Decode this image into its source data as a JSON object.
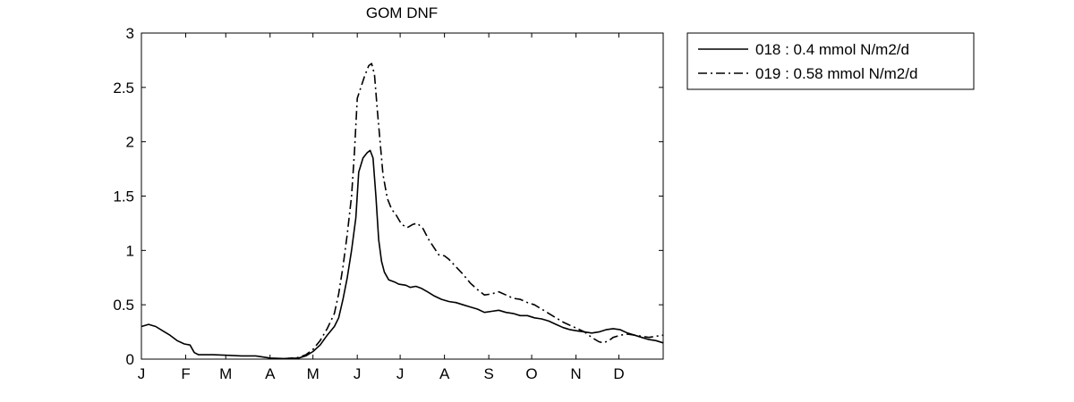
{
  "chart_data": {
    "type": "line",
    "title": "GOM DNF",
    "xlabel": "",
    "ylabel": "",
    "x_ticks": [
      "J",
      "F",
      "M",
      "A",
      "M",
      "J",
      "J",
      "A",
      "S",
      "O",
      "N",
      "D"
    ],
    "xlim": [
      0,
      365
    ],
    "ylim": [
      0,
      3
    ],
    "y_ticks": [
      "0",
      "0.5",
      "1",
      "1.5",
      "2",
      "2.5",
      "3"
    ],
    "legend_position": "outside-top-right",
    "grid": false,
    "series": [
      {
        "name": "018 : 0.4 mmol N/m2/d",
        "style": "solid",
        "color": "#000000",
        "points": [
          [
            0,
            0.3
          ],
          [
            5,
            0.32
          ],
          [
            10,
            0.3
          ],
          [
            15,
            0.26
          ],
          [
            20,
            0.22
          ],
          [
            25,
            0.17
          ],
          [
            30,
            0.14
          ],
          [
            34,
            0.13
          ],
          [
            37,
            0.06
          ],
          [
            40,
            0.04
          ],
          [
            50,
            0.04
          ],
          [
            60,
            0.035
          ],
          [
            70,
            0.03
          ],
          [
            80,
            0.03
          ],
          [
            90,
            0.01
          ],
          [
            100,
            0.005
          ],
          [
            110,
            0.01
          ],
          [
            115,
            0.03
          ],
          [
            120,
            0.07
          ],
          [
            125,
            0.13
          ],
          [
            130,
            0.22
          ],
          [
            135,
            0.3
          ],
          [
            138,
            0.38
          ],
          [
            141,
            0.55
          ],
          [
            144,
            0.75
          ],
          [
            147,
            1.0
          ],
          [
            150,
            1.3
          ],
          [
            152,
            1.72
          ],
          [
            155,
            1.85
          ],
          [
            158,
            1.9
          ],
          [
            160,
            1.92
          ],
          [
            162,
            1.85
          ],
          [
            164,
            1.5
          ],
          [
            166,
            1.1
          ],
          [
            168,
            0.9
          ],
          [
            170,
            0.8
          ],
          [
            173,
            0.73
          ],
          [
            177,
            0.71
          ],
          [
            180,
            0.69
          ],
          [
            185,
            0.68
          ],
          [
            188,
            0.66
          ],
          [
            192,
            0.67
          ],
          [
            196,
            0.65
          ],
          [
            200,
            0.62
          ],
          [
            205,
            0.58
          ],
          [
            210,
            0.55
          ],
          [
            215,
            0.53
          ],
          [
            220,
            0.52
          ],
          [
            225,
            0.5
          ],
          [
            230,
            0.48
          ],
          [
            235,
            0.46
          ],
          [
            240,
            0.43
          ],
          [
            245,
            0.44
          ],
          [
            250,
            0.45
          ],
          [
            255,
            0.43
          ],
          [
            260,
            0.42
          ],
          [
            265,
            0.4
          ],
          [
            270,
            0.4
          ],
          [
            275,
            0.38
          ],
          [
            280,
            0.37
          ],
          [
            285,
            0.35
          ],
          [
            290,
            0.32
          ],
          [
            295,
            0.29
          ],
          [
            300,
            0.27
          ],
          [
            305,
            0.26
          ],
          [
            310,
            0.25
          ],
          [
            315,
            0.24
          ],
          [
            320,
            0.25
          ],
          [
            325,
            0.27
          ],
          [
            330,
            0.28
          ],
          [
            335,
            0.27
          ],
          [
            340,
            0.24
          ],
          [
            345,
            0.22
          ],
          [
            350,
            0.2
          ],
          [
            355,
            0.18
          ],
          [
            360,
            0.17
          ],
          [
            365,
            0.15
          ]
        ]
      },
      {
        "name": "019 : 0.58 mmol N/m2/d",
        "style": "dash-dot",
        "color": "#000000",
        "points": [
          [
            100,
            0.005
          ],
          [
            110,
            0.015
          ],
          [
            115,
            0.04
          ],
          [
            120,
            0.09
          ],
          [
            125,
            0.17
          ],
          [
            130,
            0.28
          ],
          [
            135,
            0.42
          ],
          [
            138,
            0.6
          ],
          [
            141,
            0.85
          ],
          [
            144,
            1.15
          ],
          [
            147,
            1.5
          ],
          [
            149,
            1.9
          ],
          [
            151,
            2.4
          ],
          [
            153,
            2.48
          ],
          [
            156,
            2.6
          ],
          [
            159,
            2.7
          ],
          [
            161,
            2.72
          ],
          [
            163,
            2.62
          ],
          [
            165,
            2.3
          ],
          [
            167,
            2.0
          ],
          [
            169,
            1.7
          ],
          [
            172,
            1.48
          ],
          [
            175,
            1.38
          ],
          [
            178,
            1.33
          ],
          [
            182,
            1.24
          ],
          [
            186,
            1.21
          ],
          [
            190,
            1.24
          ],
          [
            193,
            1.25
          ],
          [
            197,
            1.2
          ],
          [
            201,
            1.1
          ],
          [
            205,
            1.02
          ],
          [
            208,
            0.96
          ],
          [
            212,
            0.95
          ],
          [
            215,
            0.92
          ],
          [
            220,
            0.85
          ],
          [
            225,
            0.78
          ],
          [
            230,
            0.7
          ],
          [
            235,
            0.64
          ],
          [
            240,
            0.59
          ],
          [
            245,
            0.6
          ],
          [
            250,
            0.62
          ],
          [
            255,
            0.59
          ],
          [
            260,
            0.56
          ],
          [
            265,
            0.55
          ],
          [
            270,
            0.52
          ],
          [
            275,
            0.5
          ],
          [
            280,
            0.46
          ],
          [
            285,
            0.42
          ],
          [
            290,
            0.38
          ],
          [
            295,
            0.34
          ],
          [
            300,
            0.31
          ],
          [
            305,
            0.28
          ],
          [
            310,
            0.25
          ],
          [
            315,
            0.2
          ],
          [
            320,
            0.16
          ],
          [
            323,
            0.15
          ],
          [
            327,
            0.17
          ],
          [
            330,
            0.2
          ],
          [
            335,
            0.22
          ],
          [
            340,
            0.23
          ],
          [
            345,
            0.22
          ],
          [
            350,
            0.21
          ],
          [
            355,
            0.2
          ],
          [
            360,
            0.21
          ],
          [
            365,
            0.22
          ]
        ]
      }
    ]
  }
}
